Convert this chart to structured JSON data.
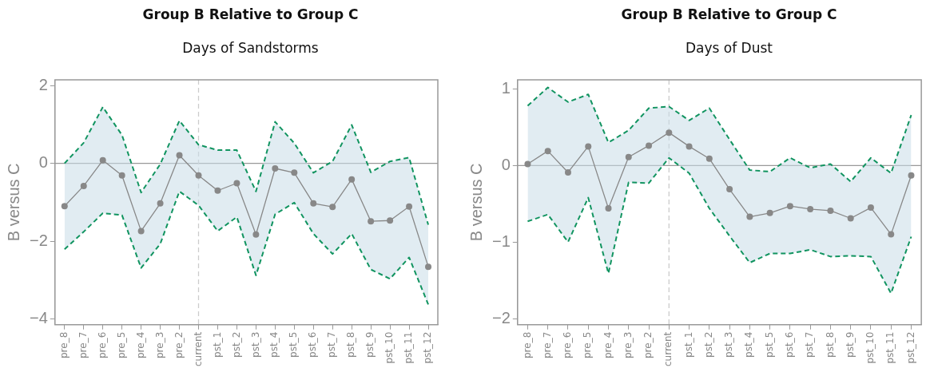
{
  "chart_data": [
    {
      "type": "line",
      "title": "Group B Relative to Group C",
      "subtitle": "Days of Sandstorms",
      "ylabel": "B versus C",
      "categories": [
        "pre_8",
        "pre_7",
        "pre_6",
        "pre_5",
        "pre_4",
        "pre_3",
        "pre_2",
        "current",
        "pst_1",
        "pst_2",
        "pst_3",
        "pst_4",
        "pst_5",
        "pst_6",
        "pst_7",
        "pst_8",
        "pst_9",
        "pst_10",
        "pst_11",
        "pst_12"
      ],
      "series": [
        {
          "color": "#888888",
          "values": [
            -1.1,
            -0.58,
            0.08,
            -0.31,
            -1.74,
            -1.03,
            0.21,
            -0.31,
            -0.7,
            -0.51,
            -1.83,
            -0.13,
            -0.24,
            -1.03,
            -1.12,
            -0.41,
            -1.49,
            -1.47,
            -1.11,
            -2.66
          ],
          "upper": [
            0.0,
            0.53,
            1.45,
            0.73,
            -0.75,
            -0.02,
            1.1,
            0.48,
            0.34,
            0.34,
            -0.72,
            1.07,
            0.52,
            -0.24,
            0.05,
            0.99,
            -0.23,
            0.05,
            0.15,
            -1.58
          ],
          "lower": [
            -2.21,
            -1.76,
            -1.28,
            -1.33,
            -2.69,
            -2.07,
            -0.72,
            -1.08,
            -1.74,
            -1.38,
            -2.88,
            -1.31,
            -1.01,
            -1.81,
            -2.33,
            -1.81,
            -2.73,
            -2.97,
            -2.42,
            -3.63
          ]
        },
        {
          "type": "line",
          "color": "#119460",
          "line_style": "dashed",
          "marker": "none",
          "values": [
            0.0,
            0.53,
            1.45,
            0.73,
            -0.75,
            -0.02,
            1.1,
            0.48,
            0.34,
            0.34,
            -0.72,
            1.07,
            0.52,
            -0.24,
            0.05,
            0.99,
            -0.23,
            0.05,
            0.15,
            -1.58
          ]
        },
        {
          "type": "line",
          "color": "#119460",
          "line_style": "dashed",
          "marker": "none",
          "values": [
            -2.21,
            -1.76,
            -1.28,
            -1.33,
            -2.69,
            -2.07,
            -0.72,
            -1.08,
            -1.74,
            -1.38,
            -2.88,
            -1.31,
            -1.01,
            -1.81,
            -2.33,
            -1.81,
            -2.73,
            -2.97,
            -2.42,
            -3.63
          ]
        }
      ],
      "ylim": [
        -4.15,
        2.15
      ],
      "yticks": [
        -4,
        -2,
        0,
        2
      ],
      "grid": false,
      "legend": false,
      "marker": "circle",
      "line_style": "solid",
      "ref_lines": [
        {
          "axis": "y",
          "value": 0,
          "color": "#999999",
          "line_style": "solid"
        },
        {
          "axis": "x",
          "value": "current",
          "color": "#cccccc",
          "line_style": "dashed"
        }
      ]
    },
    {
      "type": "line",
      "title": "Group B Relative to Group C",
      "subtitle": "Days of Dust",
      "ylabel": "B versus C",
      "categories": [
        "pre_8",
        "pre_7",
        "pre_6",
        "pre_5",
        "pre_4",
        "pre_3",
        "pre_2",
        "current",
        "pst_1",
        "pst_2",
        "pst_3",
        "pst_4",
        "pst_5",
        "pst_6",
        "pst_7",
        "pst_8",
        "pst_9",
        "pst_10",
        "pst_11",
        "pst_12"
      ],
      "series": [
        {
          "color": "#888888",
          "values": [
            0.02,
            0.19,
            -0.09,
            0.25,
            -0.56,
            0.11,
            0.26,
            0.43,
            0.25,
            0.09,
            -0.31,
            -0.67,
            -0.62,
            -0.53,
            -0.57,
            -0.59,
            -0.69,
            -0.55,
            -0.9,
            -0.13
          ],
          "upper": [
            0.78,
            1.02,
            0.83,
            0.93,
            0.3,
            0.46,
            0.75,
            0.77,
            0.59,
            0.75,
            0.34,
            -0.06,
            -0.08,
            0.1,
            -0.03,
            0.02,
            -0.21,
            0.1,
            -0.1,
            0.66
          ],
          "lower": [
            -0.73,
            -0.64,
            -1.0,
            -0.42,
            -1.41,
            -0.22,
            -0.23,
            0.1,
            -0.1,
            -0.56,
            -0.92,
            -1.27,
            -1.15,
            -1.15,
            -1.1,
            -1.19,
            -1.18,
            -1.19,
            -1.67,
            -0.93
          ]
        },
        {
          "type": "line",
          "color": "#119460",
          "line_style": "dashed",
          "marker": "none",
          "values": [
            0.78,
            1.02,
            0.83,
            0.93,
            0.3,
            0.46,
            0.75,
            0.77,
            0.59,
            0.75,
            0.34,
            -0.06,
            -0.08,
            0.1,
            -0.03,
            0.02,
            -0.21,
            0.1,
            -0.1,
            0.66
          ]
        },
        {
          "type": "line",
          "color": "#119460",
          "line_style": "dashed",
          "marker": "none",
          "values": [
            -0.73,
            -0.64,
            -1.0,
            -0.42,
            -1.41,
            -0.22,
            -0.23,
            0.1,
            -0.1,
            -0.56,
            -0.92,
            -1.27,
            -1.15,
            -1.15,
            -1.1,
            -1.19,
            -1.18,
            -1.19,
            -1.67,
            -0.93
          ]
        }
      ],
      "ylim": [
        -2.08,
        1.12
      ],
      "yticks": [
        -2,
        -1,
        0,
        1
      ],
      "grid": false,
      "legend": false,
      "marker": "circle",
      "line_style": "solid",
      "ref_lines": [
        {
          "axis": "y",
          "value": 0,
          "color": "#999999",
          "line_style": "solid"
        },
        {
          "axis": "x",
          "value": "current",
          "color": "#cccccc",
          "line_style": "dashed"
        }
      ]
    }
  ]
}
